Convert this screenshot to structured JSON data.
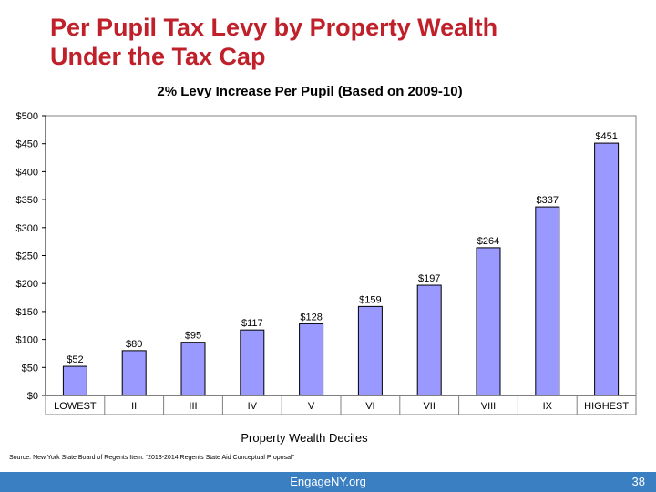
{
  "slide": {
    "title_line1": "Per Pupil Tax Levy by Property Wealth",
    "title_line2": "Under the Tax Cap",
    "source": "Source: New York State Board of Regents Item. “2013-2014 Regents State Aid Conceptual Proposal”",
    "footer_site": "EngageNY.org",
    "page_number": "38"
  },
  "chart_data": {
    "type": "bar",
    "title": "2% Levy Increase Per Pupil (Based on 2009-10)",
    "xlabel": "Property Wealth Deciles",
    "ylabel": "",
    "categories": [
      "LOWEST",
      "II",
      "III",
      "IV",
      "V",
      "VI",
      "VII",
      "VIII",
      "IX",
      "HIGHEST"
    ],
    "values": [
      52,
      80,
      95,
      117,
      128,
      159,
      197,
      264,
      337,
      451
    ],
    "data_labels": [
      "$52",
      "$80",
      "$95",
      "$117",
      "$128",
      "$159",
      "$197",
      "$264",
      "$337",
      "$451"
    ],
    "ylim": [
      0,
      500
    ],
    "yticks": [
      0,
      50,
      100,
      150,
      200,
      250,
      300,
      350,
      400,
      450,
      500
    ],
    "ytick_labels": [
      "$0",
      "$50",
      "$100",
      "$150",
      "$200",
      "$250",
      "$300",
      "$350",
      "$400",
      "$450",
      "$500"
    ],
    "grid": false,
    "bar_color": "#9999ff",
    "bar_edge_color": "#000000"
  }
}
